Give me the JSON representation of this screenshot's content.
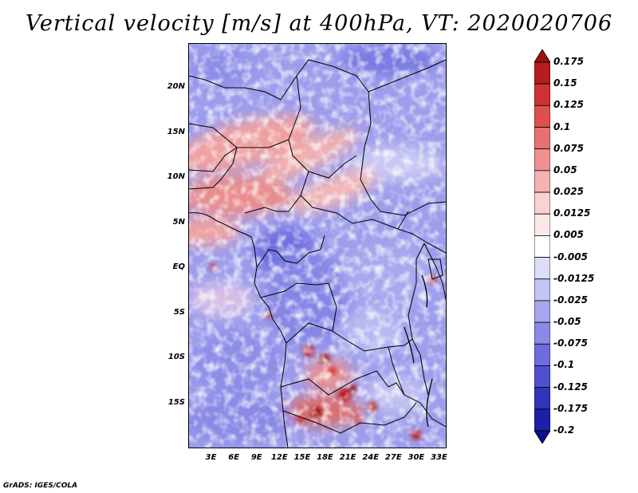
{
  "title": "Vertical velocity [m/s] at 400hPa, VT: 2020020706",
  "credit": "GrADS: IGES/COLA",
  "map": {
    "lat_labels": [
      "20N",
      "15N",
      "10N",
      "5N",
      "EQ",
      "5S",
      "10S",
      "15S"
    ],
    "lat_values": [
      20,
      15,
      10,
      5,
      0,
      -5,
      -10,
      -15
    ],
    "lat_range": [
      -20,
      25
    ],
    "lon_labels": [
      "3E",
      "6E",
      "9E",
      "12E",
      "15E",
      "18E",
      "21E",
      "24E",
      "27E",
      "30E",
      "33E"
    ],
    "lon_values": [
      3,
      6,
      9,
      12,
      15,
      18,
      21,
      24,
      27,
      30,
      33
    ],
    "lon_range": [
      0,
      34
    ]
  },
  "colorbar": {
    "labels": [
      "0.175",
      "0.15",
      "0.125",
      "0.1",
      "0.075",
      "0.05",
      "0.025",
      "0.0125",
      "0.005",
      "-0.005",
      "-0.0125",
      "-0.025",
      "-0.05",
      "-0.075",
      "-0.1",
      "-0.125",
      "-0.175",
      "-0.2"
    ],
    "colors": [
      "#9b1010",
      "#b81b1b",
      "#cf3232",
      "#df4f4f",
      "#e77070",
      "#ef9191",
      "#f5b2b2",
      "#fad1d1",
      "#fde9e9",
      "#ffffff",
      "#dcdcfb",
      "#c4c4f5",
      "#a7a7ee",
      "#8a8ae6",
      "#6d6ddd",
      "#5050cf",
      "#3434bb",
      "#1e1ea8",
      "#10108c"
    ]
  }
}
